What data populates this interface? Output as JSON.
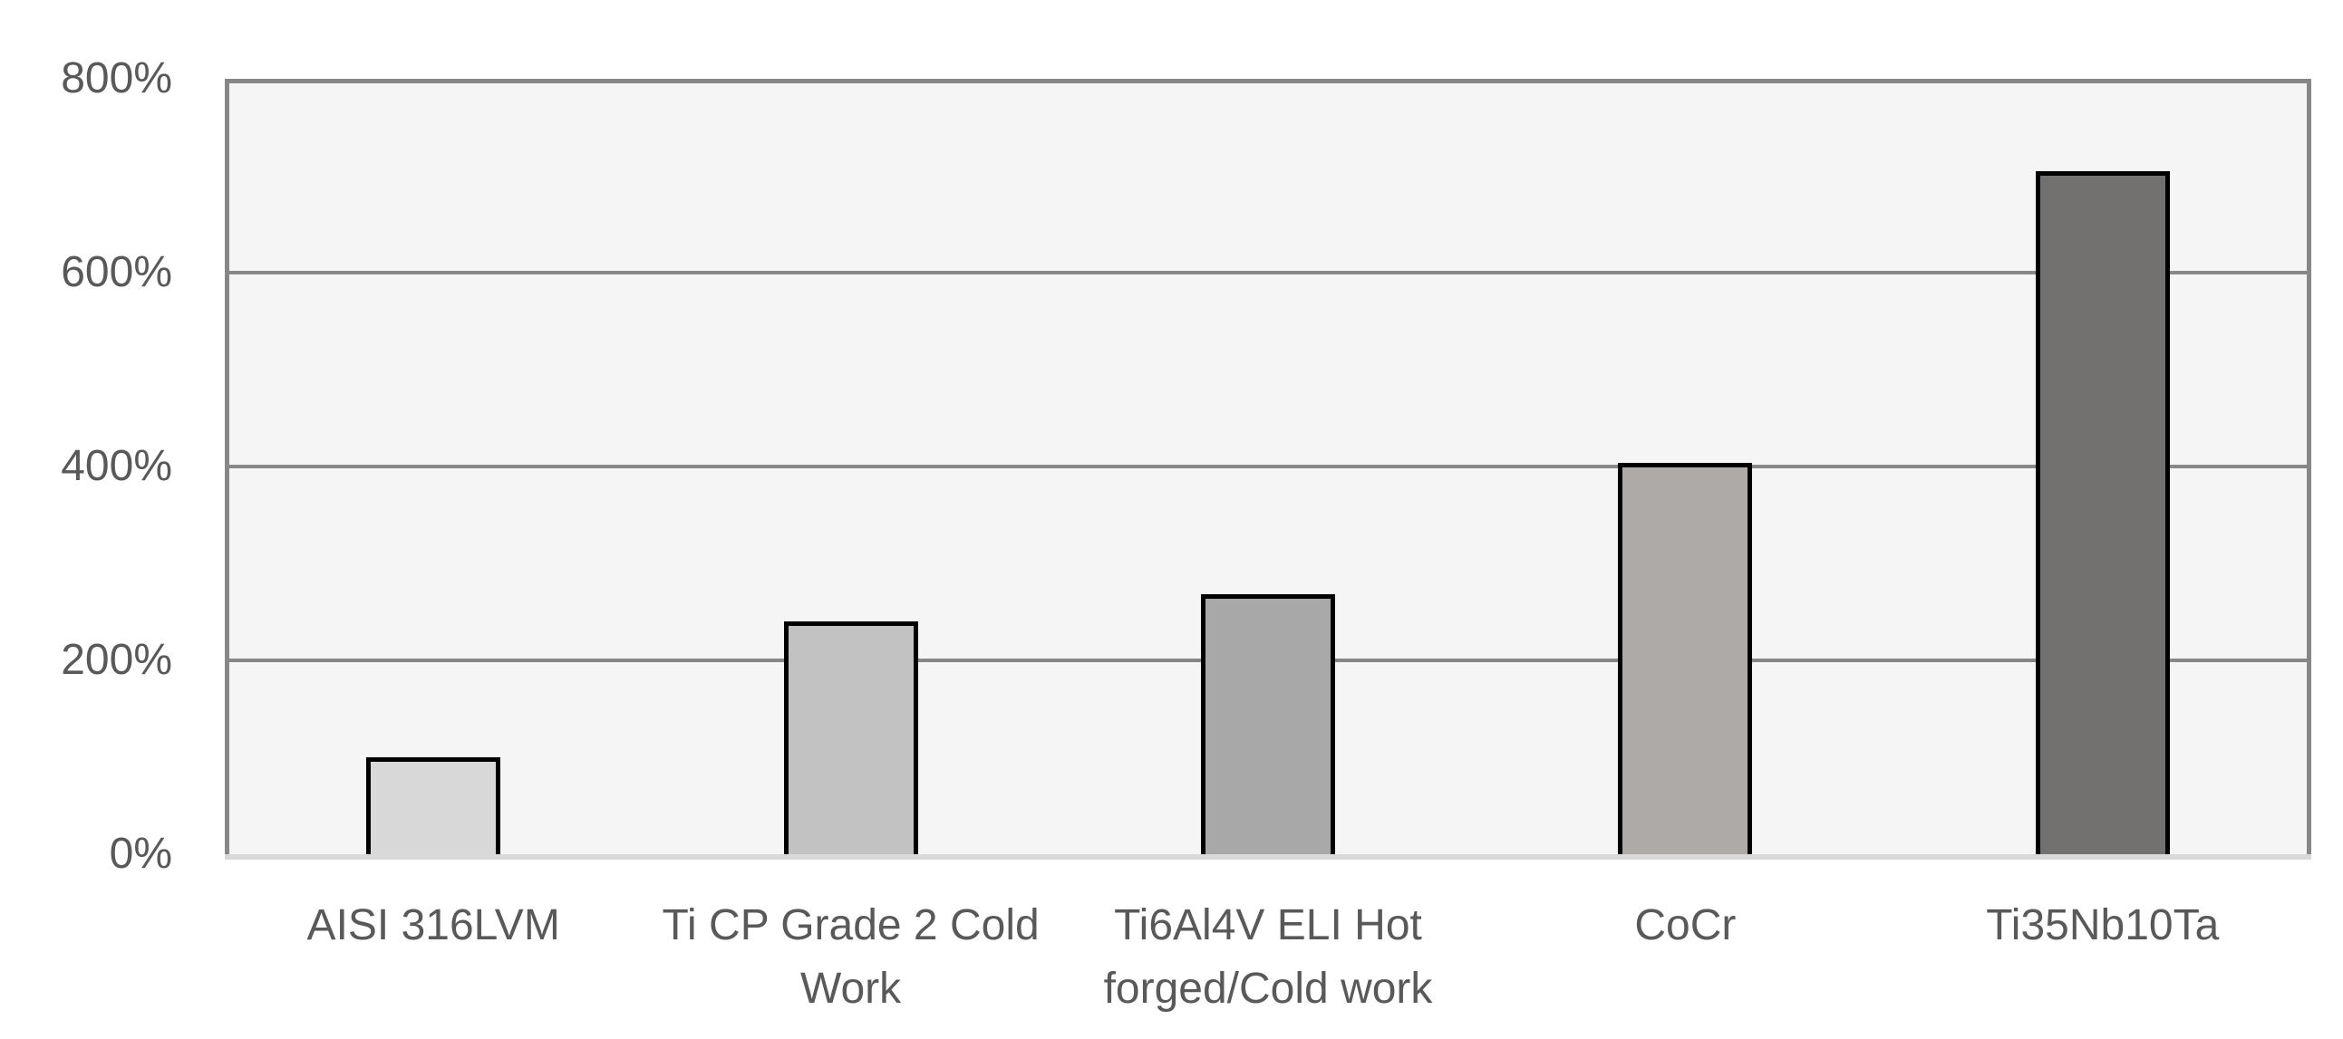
{
  "chart_data": {
    "type": "bar",
    "title": "",
    "xlabel": "",
    "ylabel": "",
    "unit": "%",
    "categories": [
      "AISI 316LVM",
      "Ti CP Grade 2 Cold Work",
      "Ti6Al4V ELI Hot forged/Cold work",
      "CoCr",
      "Ti35Nb10Ta"
    ],
    "category_lines": [
      [
        "AISI 316LVM"
      ],
      [
        "Ti CP Grade 2 Cold",
        "Work"
      ],
      [
        "Ti6Al4V ELI Hot",
        "forged/Cold work"
      ],
      [
        "CoCr"
      ],
      [
        "Ti35Nb10Ta"
      ]
    ],
    "values": [
      100,
      240,
      268,
      404,
      705
    ],
    "ylim": [
      0,
      800
    ],
    "ytick_interval": 200,
    "yticks": [
      0,
      200,
      400,
      600,
      800
    ],
    "ytick_labels": [
      "0%",
      "200%",
      "400%",
      "600%",
      "800%"
    ],
    "grid": "horizontal",
    "legend": false,
    "bar_colors": [
      "#d8d8d8",
      "#c2c2c2",
      "#a8a8a8",
      "#aeaaa7",
      "#737070"
    ],
    "bar_border_color": "#000000",
    "colors": {
      "plot_background": "#f5f5f5",
      "page_background": "#ffffff",
      "gridline": "#878787",
      "axis_frame": "#878787",
      "axis_baseline": "#d9d9d9",
      "tick_text": "#595959"
    }
  }
}
